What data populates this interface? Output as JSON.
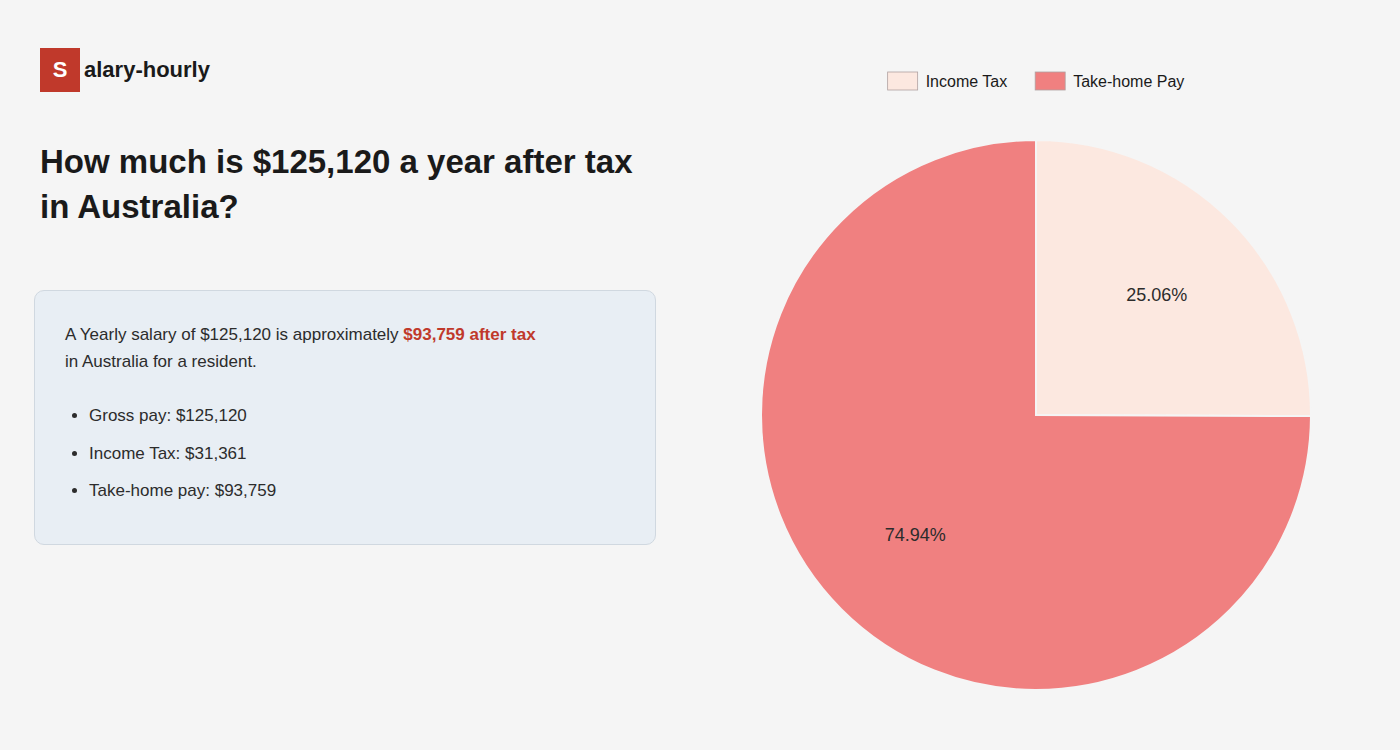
{
  "chart_data": {
    "type": "pie",
    "title": "How much is $125,120 a year after tax in Australia?",
    "annotations": [
      "S",
      "alary-hourly",
      "A Yearly salary of $125,120 is approximately ",
      "$93,759 after tax",
      "in Australia for a resident.",
      "Gross pay: $125,120",
      "Income Tax: $31,361",
      "Take-home pay: $93,759"
    ],
    "categories": [
      "Income Tax",
      "Take-home Pay"
    ],
    "values": [
      25.06,
      74.94
    ],
    "value_labels": [
      "25.06%",
      "74.94%"
    ],
    "colors": [
      "#fce8e0",
      "#f08080"
    ],
    "data_labels": true,
    "legend": "top"
  }
}
